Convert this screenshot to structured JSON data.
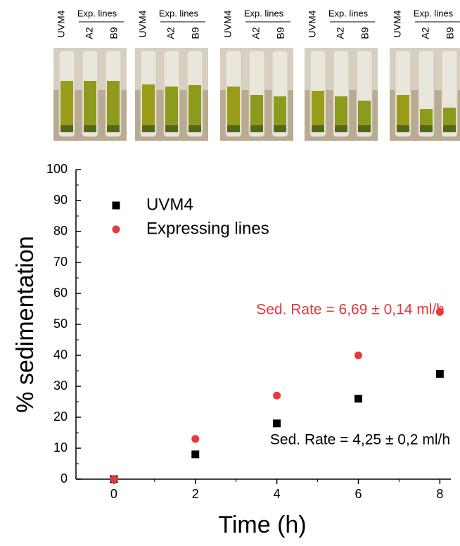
{
  "photo_panels": [
    {
      "labels": [
        "UVM4",
        "Exp. lines",
        "A2",
        "B9"
      ]
    },
    {
      "labels": [
        "UVM4",
        "Exp. lines",
        "A2",
        "B9"
      ]
    },
    {
      "labels": [
        "UVM4",
        "Exp. lines",
        "A2",
        "B9"
      ]
    },
    {
      "labels": [
        "UVM4",
        "Exp. lines",
        "A2",
        "B9"
      ]
    },
    {
      "labels": [
        "UVM4",
        "Exp. lines",
        "A2",
        "B9"
      ]
    }
  ],
  "chart_data": {
    "type": "scatter",
    "x_label": "Time (h)",
    "y_label": "% sedimentation",
    "x": [
      0,
      2,
      4,
      6,
      8
    ],
    "series": [
      {
        "name": "UVM4",
        "color": "#000000",
        "marker": "square",
        "values": [
          0,
          8,
          18,
          26,
          34
        ]
      },
      {
        "name": "Expressing lines",
        "color": "#e8383d",
        "marker": "circle",
        "values": [
          0,
          13,
          27,
          40,
          54
        ]
      }
    ],
    "xlim": [
      -0.93,
      8.27
    ],
    "ylim": [
      0,
      100
    ],
    "xticks": [
      0,
      2,
      4,
      6,
      8
    ],
    "yticks": [
      0,
      10,
      20,
      30,
      40,
      50,
      60,
      70,
      80,
      90,
      100
    ],
    "annotations": [
      {
        "text": "Sed. Rate = 6,69 ± 0,14 ml/h",
        "color": "#e8383d"
      },
      {
        "text": "Sed. Rate = 4,25 ± 0,2 ml/h",
        "color": "#000000"
      }
    ],
    "legend": "upper left"
  }
}
